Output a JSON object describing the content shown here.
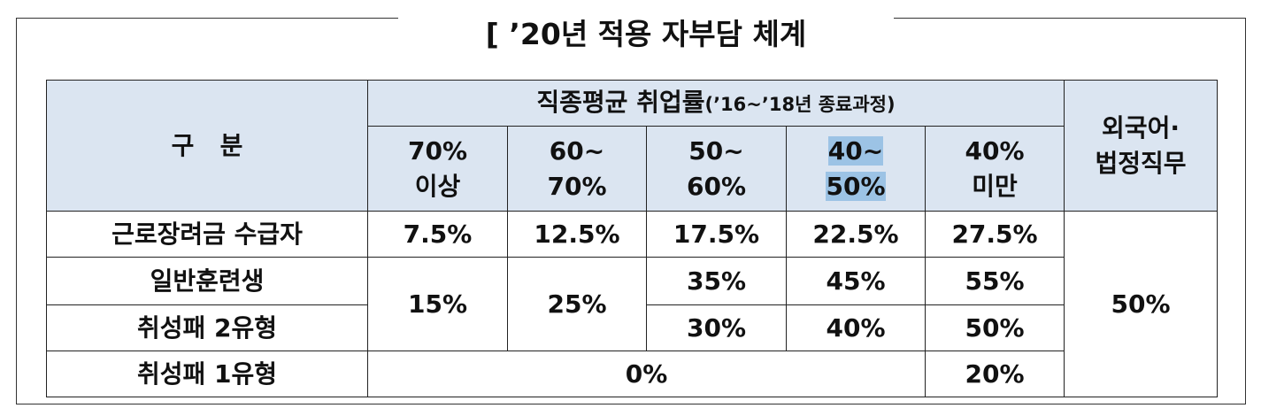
{
  "title": "[ ’20년 적용 자부담 체계",
  "table": {
    "header": {
      "category": "구   분",
      "group": {
        "main": "직종평균 취업률",
        "sub": "(’16~’18년 종료과정)"
      },
      "columns": [
        [
          "70%",
          "이상"
        ],
        [
          "60~",
          "70%"
        ],
        [
          "50~",
          "60%"
        ],
        [
          "40~",
          "50%"
        ],
        [
          "40%",
          "미만"
        ]
      ],
      "last": [
        "외국어·",
        "법정직무"
      ]
    },
    "rows": [
      {
        "label": "근로장려금 수급자",
        "cells": [
          "7.5%",
          "12.5%",
          "17.5%",
          "22.5%",
          "27.5%",
          "50%"
        ]
      },
      {
        "label": "일반훈련생",
        "cells": [
          "15%",
          "25%",
          "35%",
          "45%",
          "55%"
        ]
      },
      {
        "label": "취성패 2유형",
        "cells": [
          "30%",
          "40%",
          "50%"
        ]
      },
      {
        "label": "취성패 1유형",
        "cells": [
          "0%",
          "20%"
        ]
      }
    ]
  }
}
